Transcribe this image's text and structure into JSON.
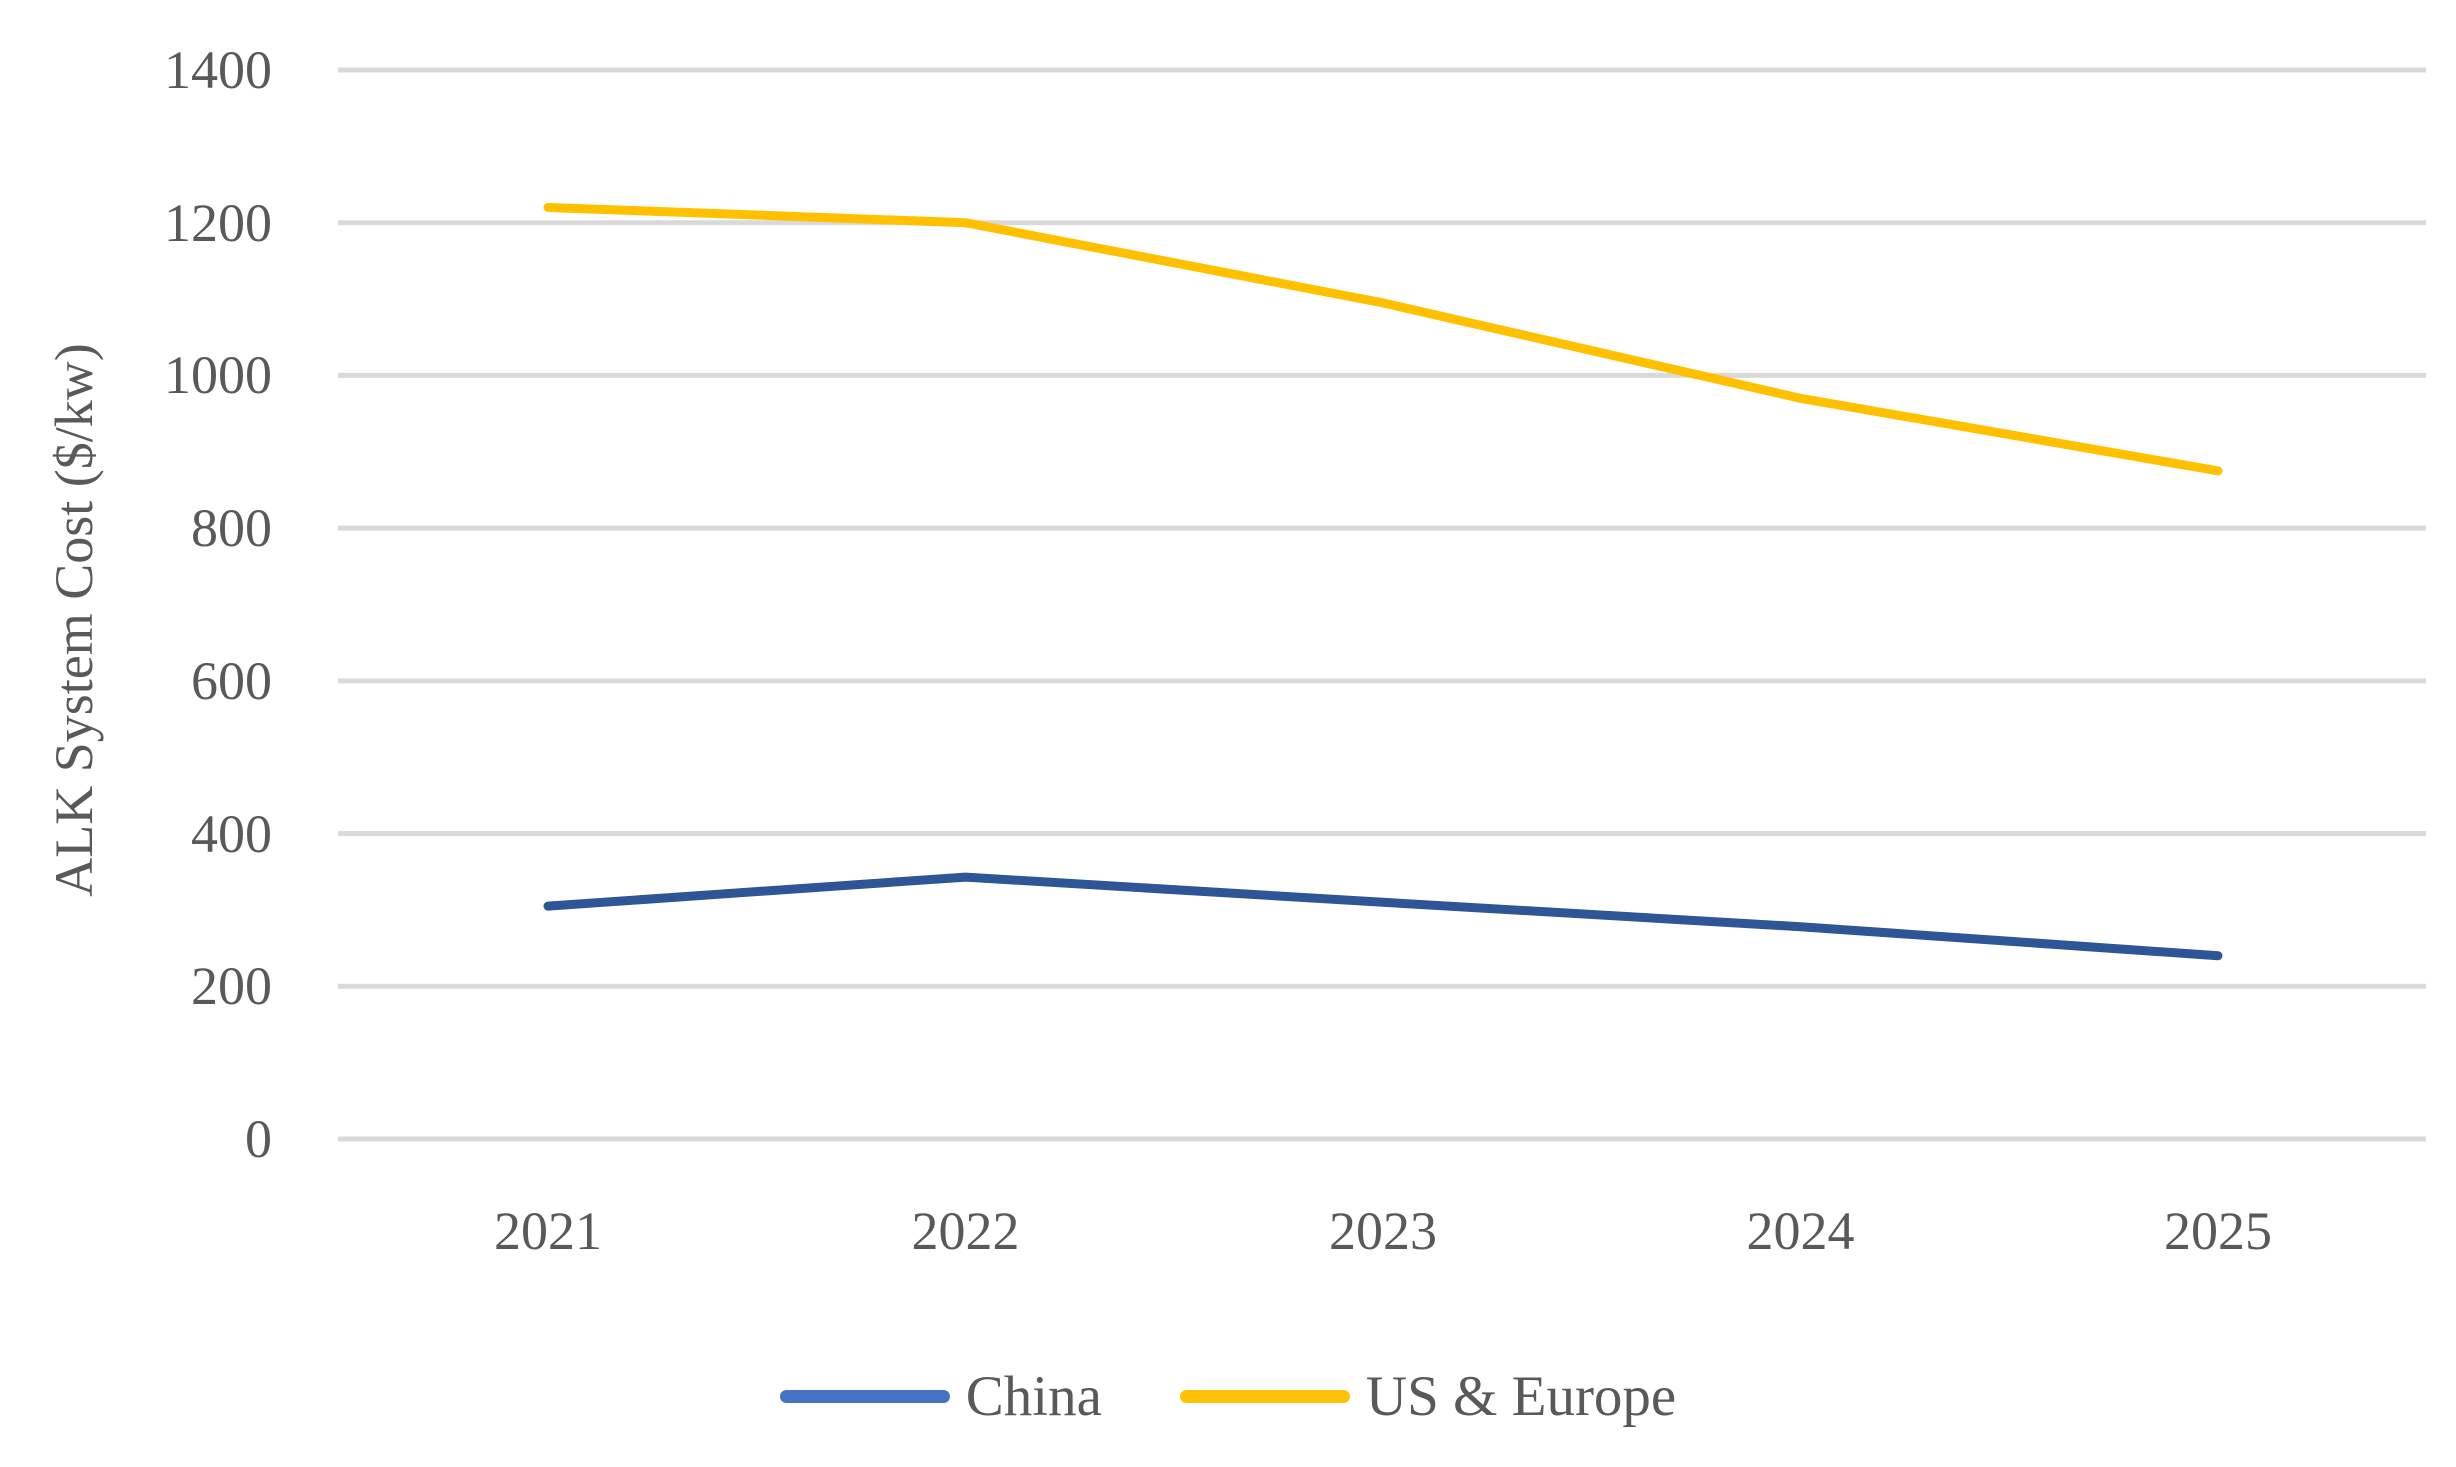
{
  "chart_data": {
    "type": "line",
    "x": [
      "2021",
      "2022",
      "2023",
      "2024",
      "2025"
    ],
    "series": [
      {
        "name": "China",
        "line_color": "#2E5596",
        "legend_color": "#4472C4",
        "values": [
          305,
          343,
          310,
          278,
          240
        ]
      },
      {
        "name": "US & Europe",
        "line_color": "#FFC000",
        "legend_color": "#FFC107",
        "values": [
          1220,
          1200,
          1095,
          970,
          875
        ]
      }
    ],
    "title": "",
    "xlabel": "",
    "ylabel": "ALK System Cost ($/kw)",
    "ylim": [
      0,
      1400
    ],
    "y_ticks": [
      0,
      200,
      400,
      600,
      800,
      1000,
      1200,
      1400
    ],
    "grid": true,
    "legend_position": "bottom"
  },
  "colors": {
    "gridline": "#D9D9D9",
    "axis_text": "#595959",
    "background": "#FFFFFF"
  }
}
